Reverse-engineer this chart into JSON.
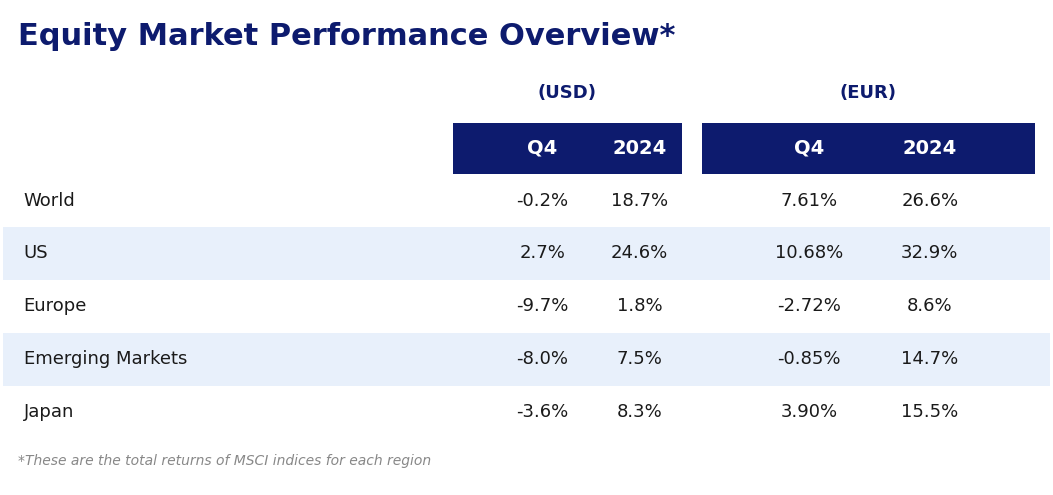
{
  "title": "Equity Market Performance Overview*",
  "title_color": "#0d1b6e",
  "title_fontsize": 22,
  "subtitle_usd": "(USD)",
  "subtitle_eur": "(EUR)",
  "subtitle_fontsize": 13,
  "subtitle_color": "#0d1b6e",
  "header_bg_color": "#0d1b6e",
  "header_text_color": "#ffffff",
  "header_fontsize": 14,
  "rows": [
    [
      "World",
      "-0.2%",
      "18.7%",
      "7.61%",
      "26.6%"
    ],
    [
      "US",
      "2.7%",
      "24.6%",
      "10.68%",
      "32.9%"
    ],
    [
      "Europe",
      "-9.7%",
      "1.8%",
      "-2.72%",
      "8.6%"
    ],
    [
      "Emerging Markets",
      "-8.0%",
      "7.5%",
      "-0.85%",
      "14.7%"
    ],
    [
      "Japan",
      "-3.6%",
      "8.3%",
      "3.90%",
      "15.5%"
    ]
  ],
  "row_colors": [
    "#ffffff",
    "#e8f0fb",
    "#ffffff",
    "#e8f0fb",
    "#ffffff"
  ],
  "row_text_color": "#1a1a1a",
  "row_fontsize": 13,
  "footnote": "*These are the total returns of MSCI indices for each region",
  "footnote_fontsize": 10,
  "footnote_color": "#888888",
  "background_color": "#ffffff"
}
